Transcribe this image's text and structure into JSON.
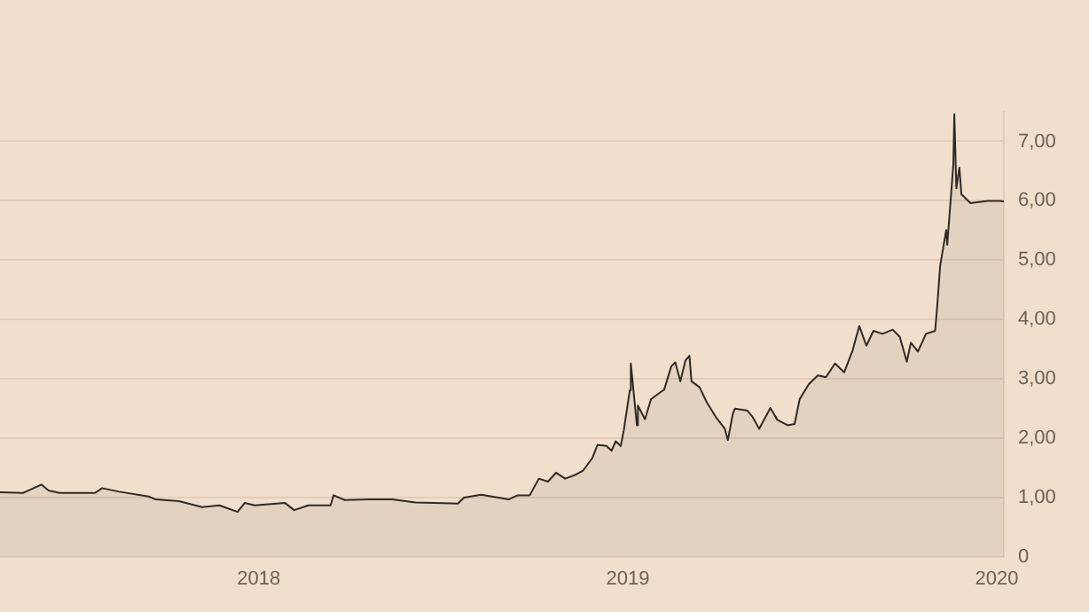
{
  "chart_data": {
    "type": "area",
    "x": [
      "2017-04-20",
      "2017-05-13",
      "2017-05-31",
      "2017-06-07",
      "2017-06-18",
      "2017-07-23",
      "2017-07-30",
      "2017-08-16",
      "2017-09-14",
      "2017-09-21",
      "2017-10-14",
      "2017-11-06",
      "2017-11-23",
      "2017-12-11",
      "2017-12-18",
      "2017-12-28",
      "2018-01-27",
      "2018-02-05",
      "2018-02-19",
      "2018-03-13",
      "2018-03-16",
      "2018-03-27",
      "2018-04-20",
      "2018-05-13",
      "2018-06-05",
      "2018-07-17",
      "2018-07-23",
      "2018-08-09",
      "2018-09-05",
      "2018-09-14",
      "2018-09-26",
      "2018-10-05",
      "2018-10-14",
      "2018-10-22",
      "2018-10-31",
      "2018-11-11",
      "2018-11-18",
      "2018-11-27",
      "2018-12-02",
      "2018-12-11",
      "2018-12-16",
      "2018-12-20",
      "2018-12-25",
      "2018-12-28",
      "2019-01-03",
      "2019-01-04",
      "2019-01-10",
      "2019-01-11",
      "2019-01-18",
      "2019-01-24",
      "2019-02-01",
      "2019-02-06",
      "2019-02-13",
      "2019-02-17",
      "2019-02-22",
      "2019-02-27",
      "2019-03-03",
      "2019-03-05",
      "2019-03-13",
      "2019-03-20",
      "2019-03-29",
      "2019-04-07",
      "2019-04-10",
      "2019-04-15",
      "2019-04-17",
      "2019-04-29",
      "2019-05-04",
      "2019-05-11",
      "2019-05-22",
      "2019-05-29",
      "2019-06-08",
      "2019-06-15",
      "2019-06-20",
      "2019-06-29",
      "2019-07-08",
      "2019-07-16",
      "2019-07-25",
      "2019-08-03",
      "2019-08-11",
      "2019-08-18",
      "2019-08-25",
      "2019-09-01",
      "2019-09-10",
      "2019-09-20",
      "2019-09-27",
      "2019-10-04",
      "2019-10-08",
      "2019-10-15",
      "2019-10-23",
      "2019-11-01",
      "2019-11-03",
      "2019-11-06",
      "2019-11-12",
      "2019-11-13",
      "2019-11-19",
      "2019-11-20",
      "2019-11-22",
      "2019-11-25",
      "2019-11-27",
      "2019-12-06",
      "2019-12-23",
      "2020-01-03",
      "2020-01-08"
    ],
    "series": [
      {
        "color": "#2e2a27",
        "values": [
          1.09,
          1.08,
          1.22,
          1.12,
          1.08,
          1.08,
          1.16,
          1.1,
          1.02,
          0.97,
          0.94,
          0.84,
          0.87,
          0.76,
          0.91,
          0.87,
          0.91,
          0.79,
          0.87,
          0.87,
          1.04,
          0.96,
          0.97,
          0.97,
          0.92,
          0.9,
          1.0,
          1.05,
          0.97,
          1.04,
          1.04,
          1.32,
          1.27,
          1.42,
          1.32,
          1.39,
          1.46,
          1.67,
          1.89,
          1.87,
          1.79,
          1.95,
          1.87,
          2.13,
          2.81,
          3.26,
          2.22,
          2.55,
          2.32,
          2.66,
          2.76,
          2.82,
          3.21,
          3.28,
          2.96,
          3.31,
          3.39,
          2.96,
          2.86,
          2.61,
          2.36,
          2.16,
          1.97,
          2.42,
          2.5,
          2.47,
          2.37,
          2.16,
          2.51,
          2.31,
          2.22,
          2.24,
          2.66,
          2.91,
          3.06,
          3.03,
          3.26,
          3.11,
          3.46,
          3.89,
          3.56,
          3.81,
          3.76,
          3.83,
          3.71,
          3.29,
          3.61,
          3.46,
          3.76,
          3.81,
          4.21,
          4.91,
          5.51,
          5.26,
          6.61,
          7.46,
          6.21,
          6.56,
          6.11,
          5.96,
          6.0,
          6.0,
          5.99
        ]
      }
    ],
    "xlim": [
      "2017-04-20",
      "2020-01-08"
    ],
    "xticks": [
      "2018",
      "2019",
      "2020"
    ],
    "ylim": [
      0,
      7.5
    ],
    "yticks": [
      0,
      {
        "value": 1,
        "label": "1,00"
      },
      {
        "value": 2,
        "label": "2,00"
      },
      {
        "value": 3,
        "label": "3,00"
      },
      {
        "value": 4,
        "label": "4,00"
      },
      {
        "value": 5,
        "label": "5,00"
      },
      {
        "value": 6,
        "label": "6,00"
      },
      {
        "value": 7,
        "label": "7,00"
      }
    ],
    "grid": "y",
    "legend": false
  }
}
